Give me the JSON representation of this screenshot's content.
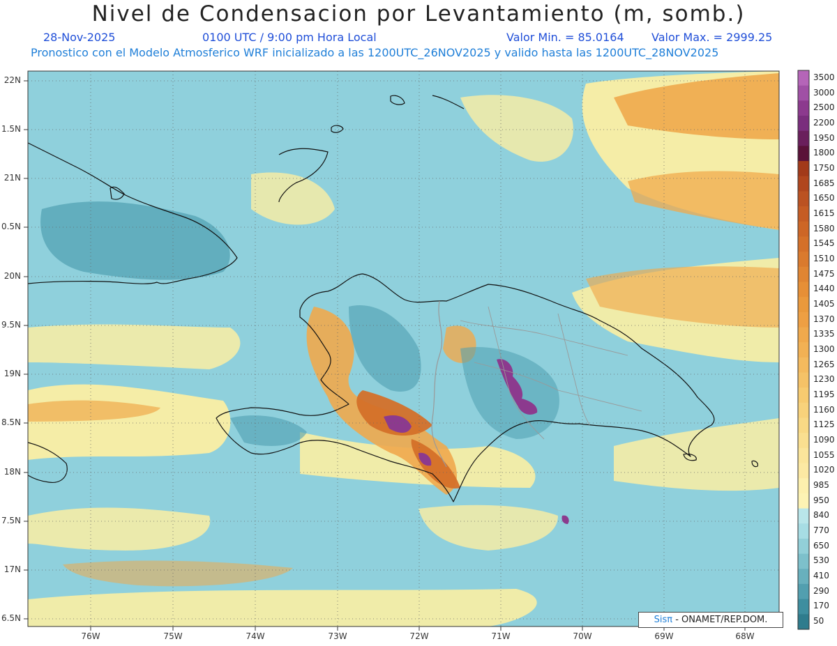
{
  "header": {
    "title": "Nivel de Condensacion por Levantamiento (m, somb.)",
    "date": "28-Nov-2025",
    "time": "0100 UTC / 9:00 pm Hora Local",
    "min_label": "Valor Min. = 85.0164",
    "max_label": "Valor Max. = 2999.25",
    "model_line": "Pronostico con el Modelo Atmosferico WRF inicializado a las 1200UTC_26NOV2025 y valido hasta las  1200UTC_28NOV2025"
  },
  "axes": {
    "lat_labels": [
      "22N",
      "1.5N",
      "21N",
      "0.5N",
      "20N",
      "9.5N",
      "19N",
      "8.5N",
      "18N",
      "7.5N",
      "17N",
      "6.5N"
    ],
    "lon_labels": [
      "76W",
      "75W",
      "74W",
      "73W",
      "72W",
      "71W",
      "70W",
      "69W",
      "68W"
    ]
  },
  "colorbar": {
    "labels": [
      "3500",
      "3000",
      "2500",
      "2200",
      "1950",
      "1800",
      "1750",
      "1685",
      "1650",
      "1615",
      "1580",
      "1545",
      "1510",
      "1475",
      "1440",
      "1405",
      "1370",
      "1335",
      "1300",
      "1265",
      "1230",
      "1195",
      "1160",
      "1125",
      "1090",
      "1055",
      "1020",
      "985",
      "950",
      "840",
      "770",
      "650",
      "530",
      "410",
      "290",
      "170",
      "50"
    ],
    "colors": [
      "#b565b8",
      "#a050a5",
      "#8c3a8e",
      "#7a2e7d",
      "#6a1f5c",
      "#5a1238",
      "#a23a1a",
      "#b0461e",
      "#bb5222",
      "#c55c24",
      "#cd6626",
      "#d47029",
      "#da7a2d",
      "#e08532",
      "#e68f36",
      "#ea993c",
      "#ee9f43",
      "#f0a94c",
      "#f2b154",
      "#f4ba5e",
      "#f5c267",
      "#f7cb70",
      "#f8d27b",
      "#f9d985",
      "#fadf90",
      "#fbe59b",
      "#fce9a3",
      "#fdf0ae",
      "#fdf3b4",
      "#b9e6ea",
      "#a7dde4",
      "#92cfd8",
      "#7dc0cb",
      "#68b0bd",
      "#529faf",
      "#3e8e9f",
      "#2f7c8d"
    ]
  },
  "map_colors": {
    "ocean_base": "#8fd0dc",
    "yellow": "#fbeea3",
    "orange": "#f0a94c",
    "dark_orange": "#d47029",
    "purple": "#8c3a8e",
    "teal_dark": "#4f9fb0",
    "coast": "#111111",
    "border": "#999999"
  },
  "credit": {
    "brand": "Sisπ",
    "text": " - ONAMET/REP.DOM."
  }
}
